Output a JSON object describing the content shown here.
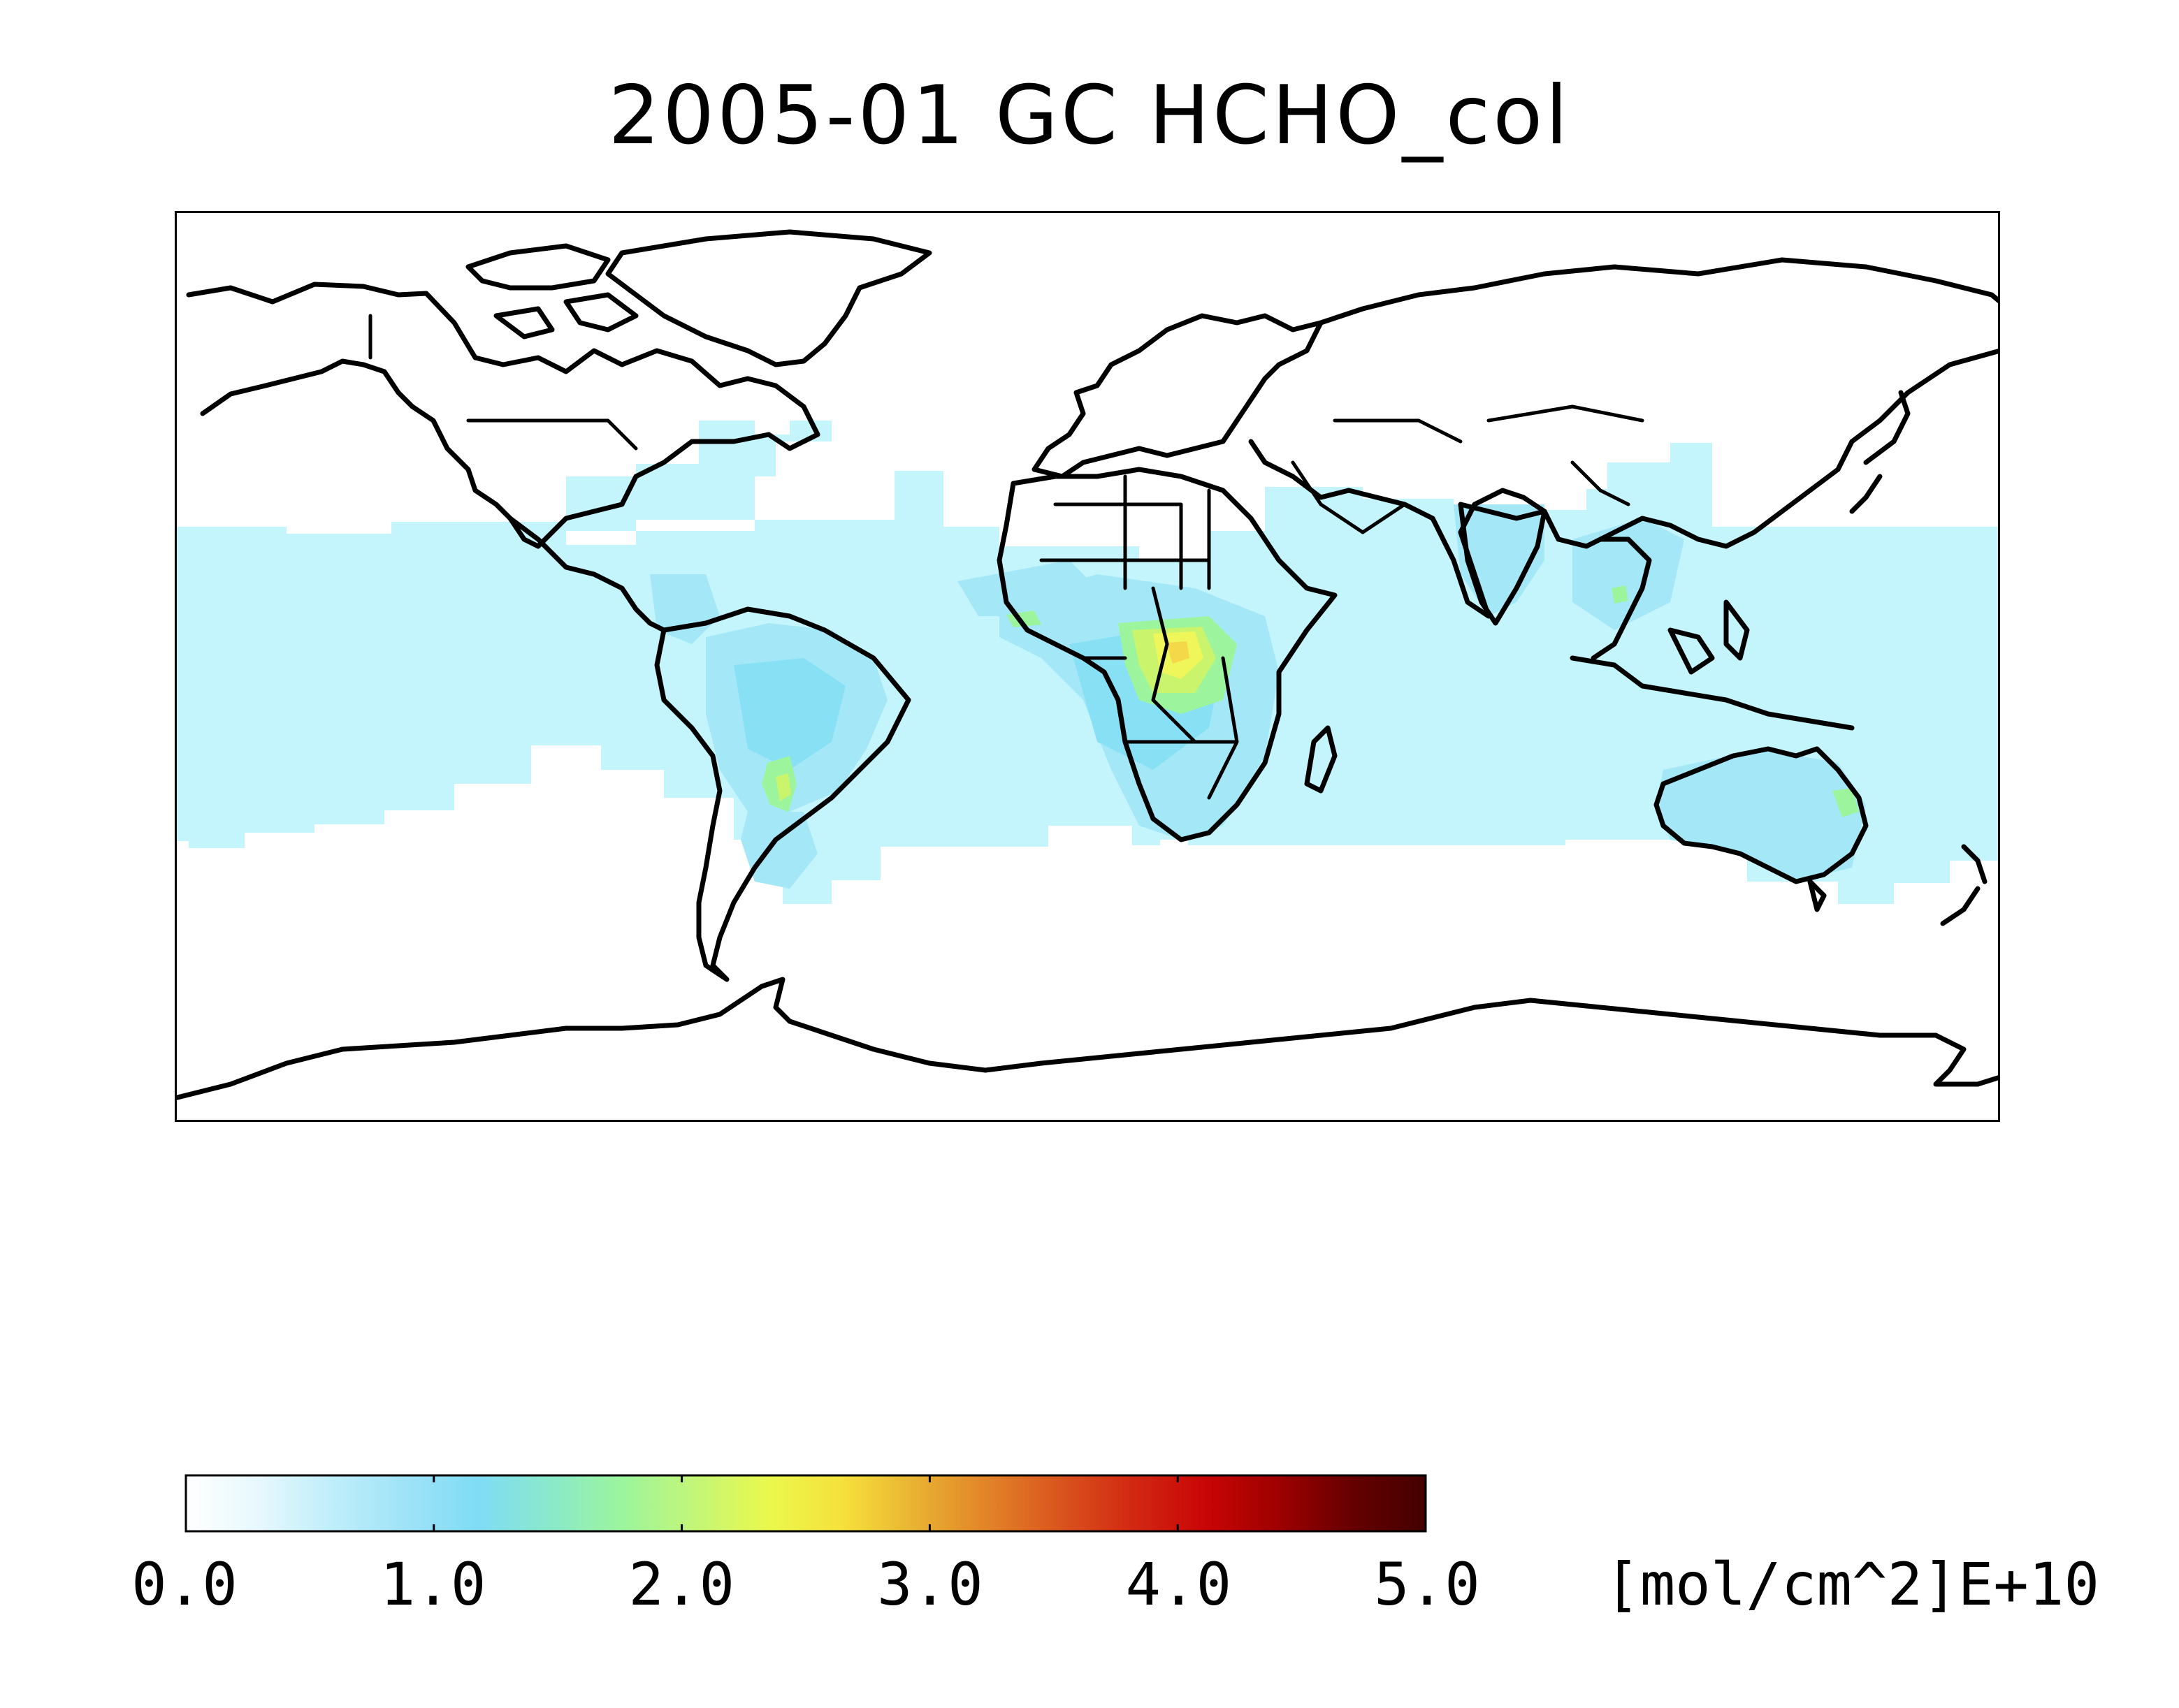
{
  "title": "2005-01 GC HCHO_col",
  "colorbar": {
    "min": 0.0,
    "max": 5.0,
    "ticks": [
      "0.0",
      "1.0",
      "2.0",
      "3.0",
      "4.0",
      "5.0"
    ],
    "units": "[mol/cm^2]E+10",
    "colors": [
      "#ffffff",
      "#e6f8fd",
      "#bfeefb",
      "#9fe3f7",
      "#7fdcf6",
      "#8ae9c9",
      "#9cf59c",
      "#c4f677",
      "#eaf84c",
      "#f6e13c",
      "#e9b232",
      "#e28328",
      "#d9541d",
      "#d22812",
      "#c80505",
      "#9e0000",
      "#660000",
      "#440000"
    ]
  },
  "map": {
    "projection": "cylindrical",
    "lon_range": [
      -180,
      180
    ],
    "lat_range": [
      -90,
      90
    ],
    "colors": {
      "ocean_band": "#c4f4fc",
      "land_low": "#a4e8f8",
      "land_mid": "#88e0f5",
      "green": "#9cf59c",
      "yellow_green": "#c9f46c",
      "yellow": "#eef65a",
      "orange_yellow": "#f5d84a",
      "coastline": "#000000"
    },
    "feature_list": [
      "world-coastlines",
      "country-borders",
      "hcho-column-field"
    ],
    "field_regions": [
      {
        "name": "tropical-band",
        "level": 0.3
      },
      {
        "name": "north-america-east",
        "level": 0.35
      },
      {
        "name": "amazon",
        "level": 0.8
      },
      {
        "name": "chaco-paraguay",
        "level": 1.6
      },
      {
        "name": "central-africa",
        "level": 2.2
      },
      {
        "name": "congo-core",
        "level": 2.6
      },
      {
        "name": "west-africa-coast",
        "level": 1.7
      },
      {
        "name": "southern-africa",
        "level": 0.8
      },
      {
        "name": "india",
        "level": 0.7
      },
      {
        "name": "indochina",
        "level": 0.8
      },
      {
        "name": "australia",
        "level": 0.8
      },
      {
        "name": "australia-east-coast",
        "level": 1.6
      }
    ]
  }
}
